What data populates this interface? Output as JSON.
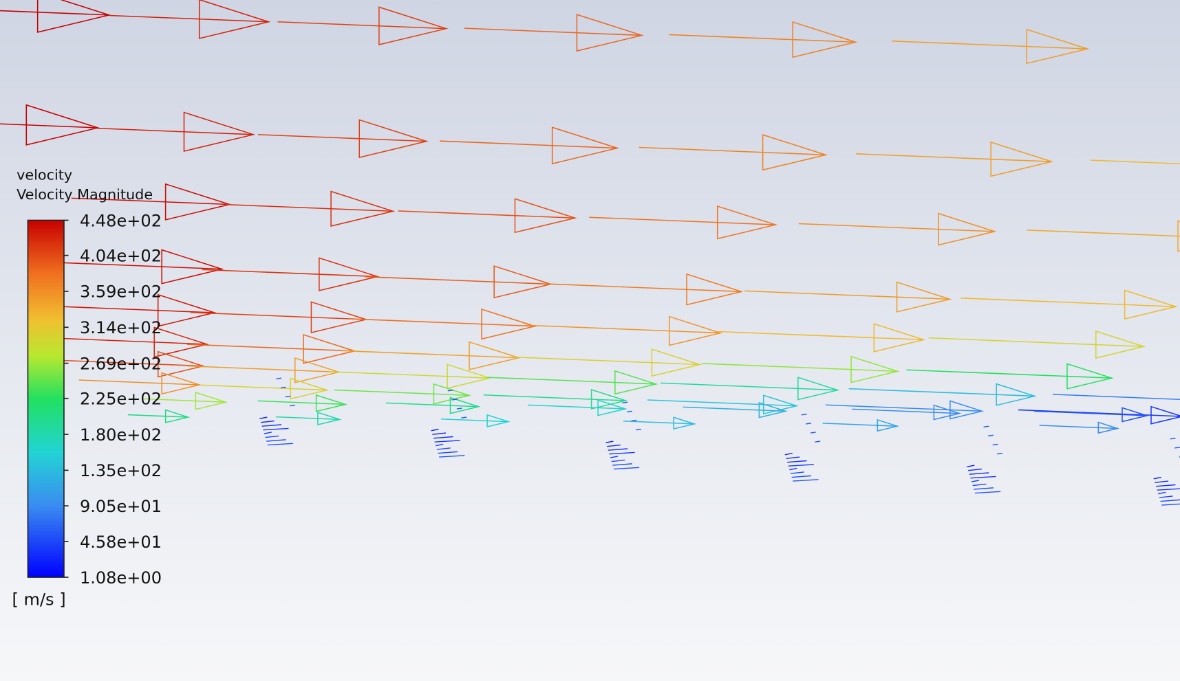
{
  "legend": {
    "title": "velocity",
    "subtitle": "Velocity Magnitude",
    "ticks": [
      {
        "value": 448,
        "label": "4.48e+02"
      },
      {
        "value": 404,
        "label": "4.04e+02"
      },
      {
        "value": 359,
        "label": "3.59e+02"
      },
      {
        "value": 314,
        "label": "3.14e+02"
      },
      {
        "value": 269,
        "label": "2.69e+02"
      },
      {
        "value": 225,
        "label": "2.25e+02"
      },
      {
        "value": 180,
        "label": "1.80e+02"
      },
      {
        "value": 135,
        "label": "1.35e+02"
      },
      {
        "value": 90.5,
        "label": "9.05e+01"
      },
      {
        "value": 45.8,
        "label": "4.58e+01"
      },
      {
        "value": 1.08,
        "label": "1.08e+00"
      }
    ],
    "unit": "[ m/s ]"
  }
}
